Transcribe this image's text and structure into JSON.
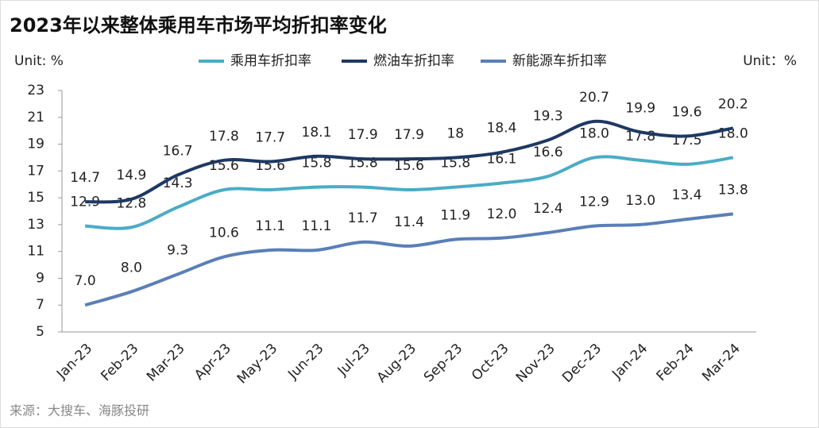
{
  "chart_data": {
    "type": "line",
    "title": "2023年以来整体乘用车市场平均折扣率变化",
    "y_unit_left": "Unit: %",
    "y_unit_right": "Unit：%",
    "source": "来源：大搜车、海豚投研",
    "categories": [
      "Jan-23",
      "Feb-23",
      "Mar-23",
      "Apr-23",
      "May-23",
      "Jun-23",
      "Jul-23",
      "Aug-23",
      "Sep-23",
      "Oct-23",
      "Nov-23",
      "Dec-23",
      "Jan-24",
      "Feb-24",
      "Mar-24"
    ],
    "series": [
      {
        "name": "乘用车折扣率",
        "color": "#4bacc6",
        "values": [
          12.9,
          12.8,
          14.3,
          15.6,
          15.6,
          15.8,
          15.8,
          15.6,
          15.8,
          16.1,
          16.6,
          18.0,
          17.8,
          17.5,
          18.0
        ],
        "value_labels": [
          "12.9",
          "12.8",
          "14.3",
          "15.6",
          "15.6",
          "15.8",
          "15.8",
          "15.6",
          "15.8",
          "16.1",
          "16.6",
          "18.0",
          "17.8",
          "17.5",
          "18.0"
        ]
      },
      {
        "name": "燃油车折扣率",
        "color": "#1f3864",
        "values": [
          14.7,
          14.9,
          16.7,
          17.8,
          17.7,
          18.1,
          17.9,
          17.9,
          18,
          18.4,
          19.3,
          20.7,
          19.9,
          19.6,
          20.2
        ]
      },
      {
        "name": "新能源车折扣率",
        "color": "#5a7fb8",
        "values": [
          7.0,
          8.0,
          9.3,
          10.6,
          11.1,
          11.1,
          11.7,
          11.4,
          11.9,
          12.0,
          12.4,
          12.9,
          13.0,
          13.4,
          13.8
        ],
        "value_labels": [
          "7.0",
          "8.0",
          "9.3",
          "10.6",
          "11.1",
          "11.1",
          "11.7",
          "11.4",
          "11.9",
          "12.0",
          "12.4",
          "12.9",
          "13.0",
          "13.4",
          "13.8"
        ]
      }
    ],
    "ylim": [
      5,
      23
    ],
    "yticks": [
      5,
      7,
      9,
      11,
      13,
      15,
      17,
      19,
      21,
      23
    ],
    "legend": "top"
  }
}
